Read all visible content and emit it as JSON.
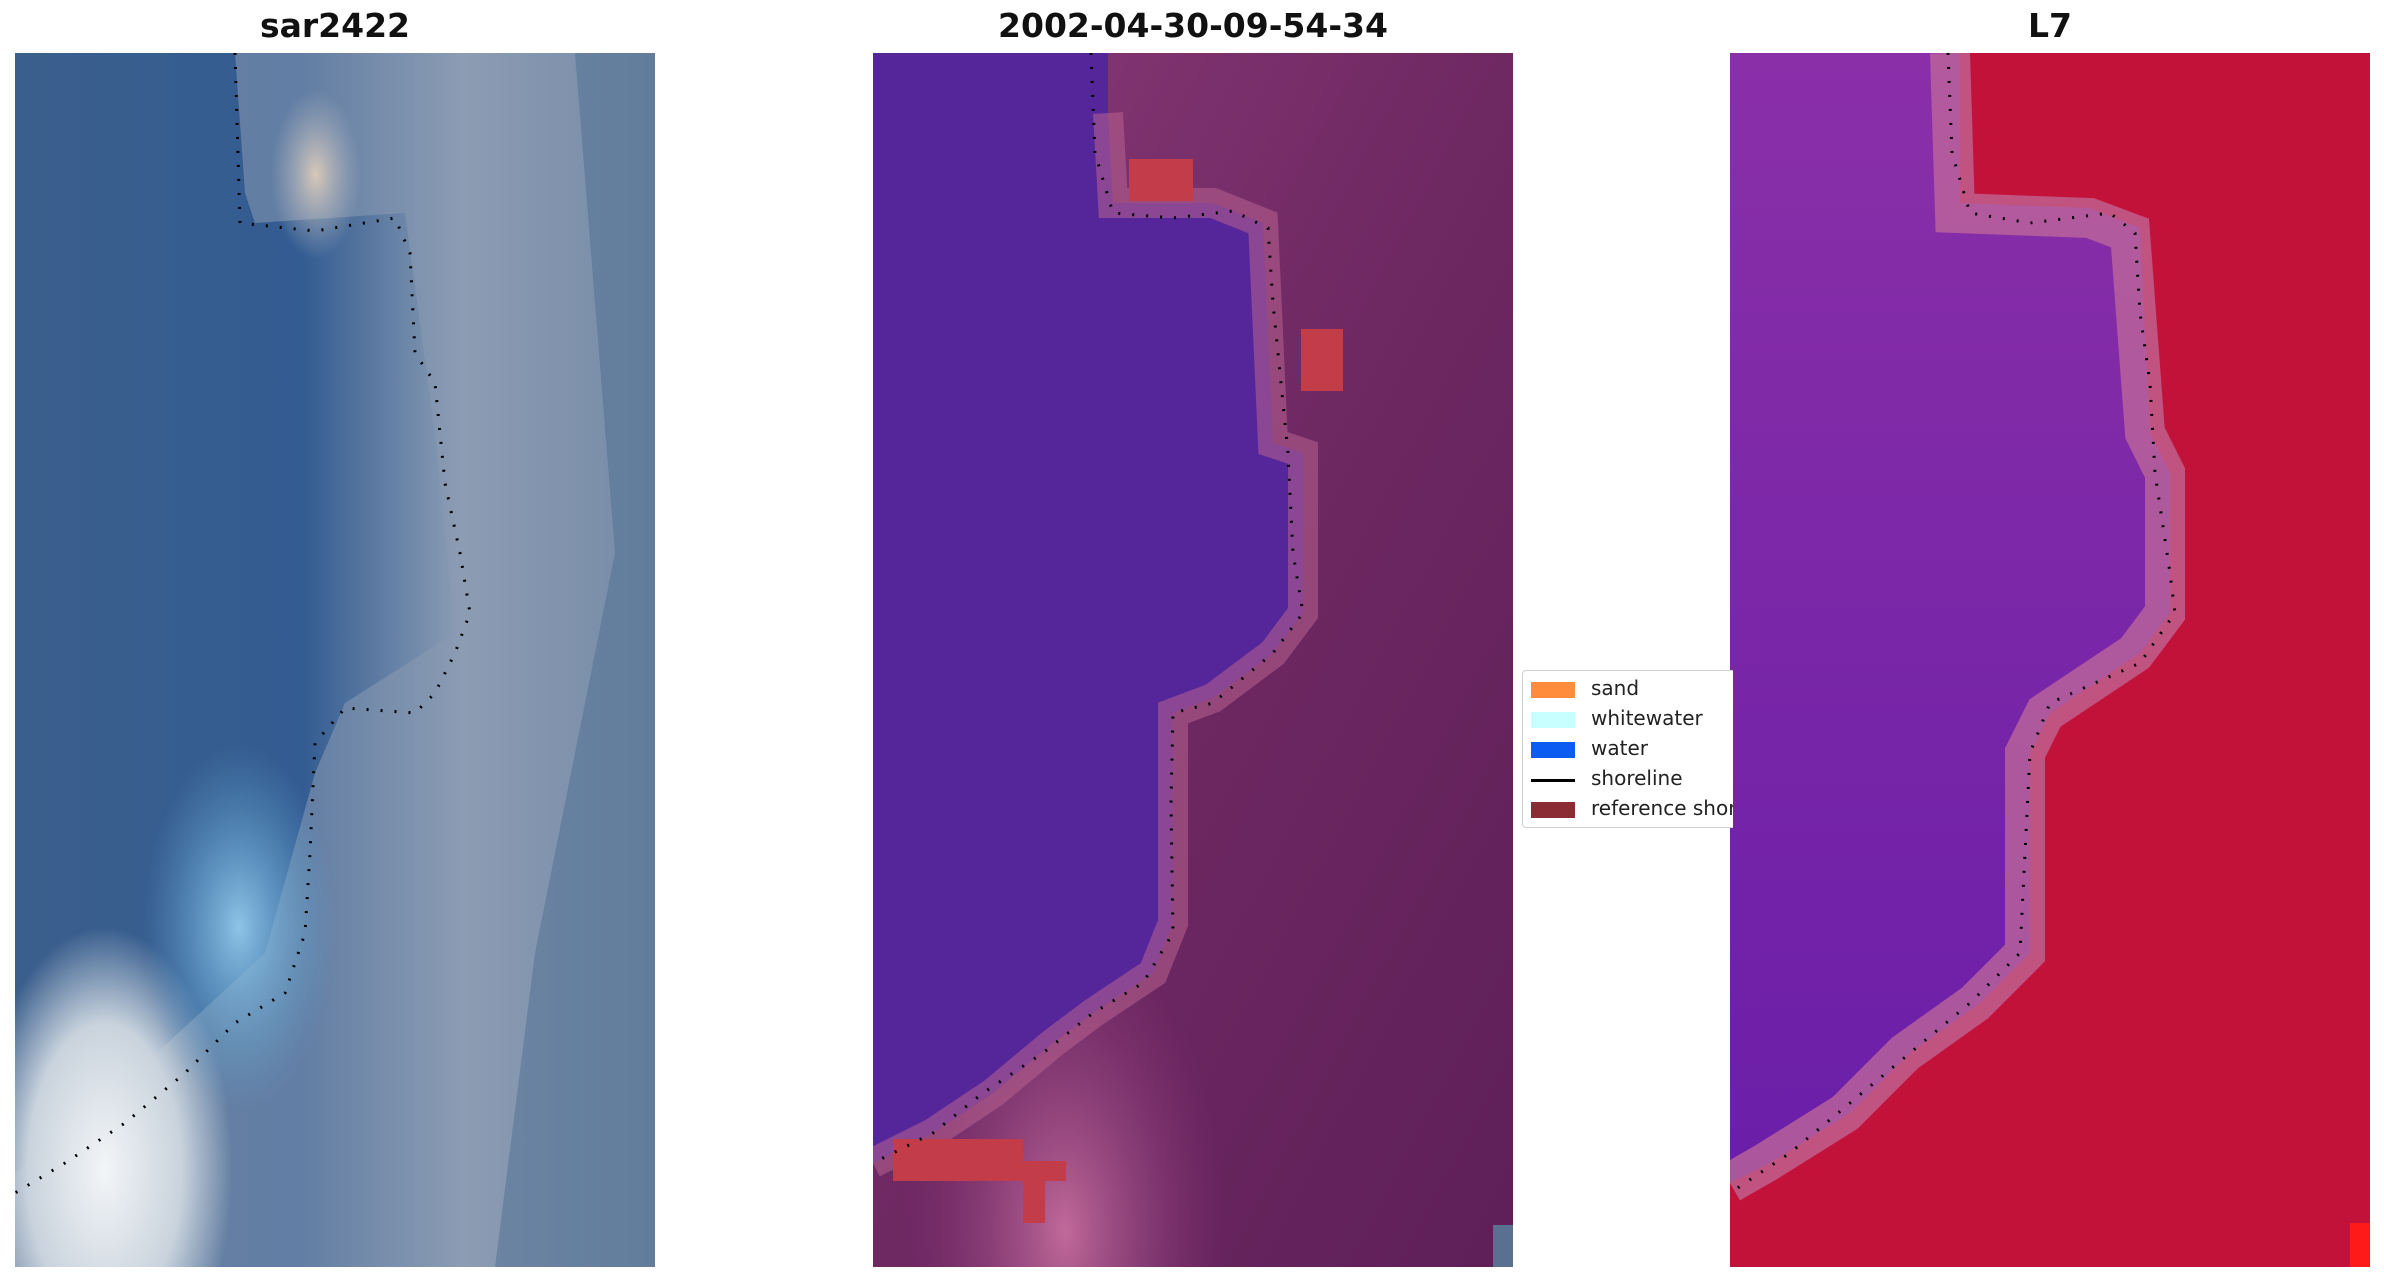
{
  "panels": [
    {
      "title": "sar2422",
      "kind": "rgb"
    },
    {
      "title": "2002-04-30-09-54-34",
      "kind": "classified"
    },
    {
      "title": "L7",
      "kind": "index"
    }
  ],
  "legend": {
    "items": [
      {
        "label": "sand",
        "color": "#ff8c3a",
        "type": "patch"
      },
      {
        "label": "whitewater",
        "color": "#c8ffff",
        "type": "patch"
      },
      {
        "label": "water",
        "color": "#0b5cf0",
        "type": "patch"
      },
      {
        "label": "shoreline",
        "color": "#000000",
        "type": "line"
      },
      {
        "label": "reference shoreline",
        "color": "#8b2b33",
        "type": "patch"
      }
    ]
  },
  "colors": {
    "rgb_water": "#3a5f8f",
    "rgb_land": "#8090a8",
    "rgb_white": "#e8eef2",
    "class_water": "#55259a",
    "class_land": "#6a2660",
    "class_pink": "#b8628f",
    "class_red": "#c23c4a",
    "index_water": "#7a2aa5",
    "index_land": "#c2123a",
    "index_edge": "#c06a9a"
  }
}
